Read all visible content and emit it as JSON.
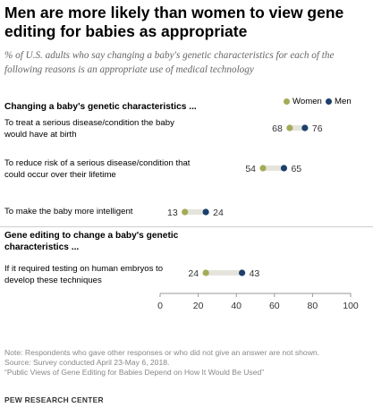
{
  "title": "Men are more likely than women to view gene editing for babies as appropriate",
  "subtitle": "% of U.S. adults who say changing a baby's genetic characteristics for each of the following reasons is an appropriate use of medical technology",
  "sections": [
    {
      "heading": "Changing a baby's genetic characteristics ..."
    },
    {
      "heading": "Gene editing to change a baby's genetic characteristics ..."
    }
  ],
  "legend": {
    "women": "Women",
    "men": "Men"
  },
  "colors": {
    "women": "#a3ab57",
    "men": "#1d3f6b",
    "connector": "#e5e4dc",
    "axis": "#999999"
  },
  "chart_data": {
    "type": "dot",
    "categories": [
      "To treat a serious disease/condition the baby would have at birth",
      "To reduce risk of a serious disease/condition that could occur over their lifetime",
      "To make the baby more intelligent",
      "If it required testing on human embryos to develop these techniques"
    ],
    "series": [
      {
        "name": "Women",
        "values": [
          68,
          54,
          13,
          24
        ]
      },
      {
        "name": "Men",
        "values": [
          76,
          65,
          24,
          43
        ]
      }
    ],
    "xlim": [
      0,
      100
    ],
    "xticks": [
      "0",
      "20",
      "40",
      "60",
      "80",
      "100"
    ]
  },
  "note": "Note: Respondents who gave other responses or who did not give an answer are not shown.",
  "source": "Source: Survey conducted April 23-May 6, 2018.",
  "report": "“Public Views of Gene Editing for Babies Depend on How It Would Be Used”",
  "org": "PEW RESEARCH CENTER"
}
